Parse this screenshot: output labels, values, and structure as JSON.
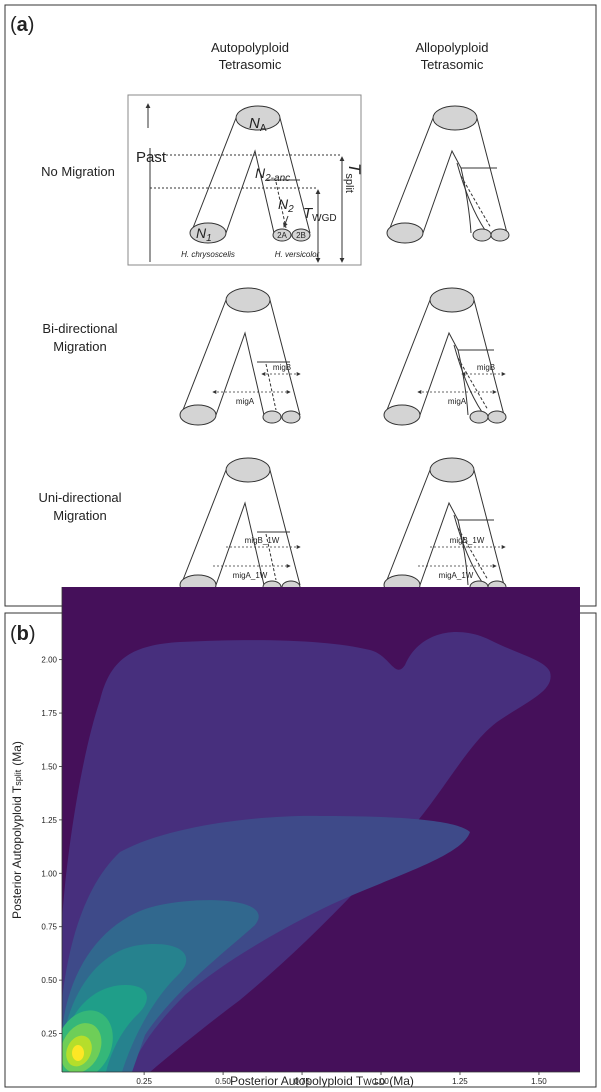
{
  "panel_a": {
    "label": [
      "(",
      "a",
      ")"
    ],
    "columns": [
      [
        "Autopolyploid",
        "Tetrasomic"
      ],
      [
        "Allopolyploid",
        "Tetrasomic"
      ]
    ],
    "rows": [
      [
        "No Migration"
      ],
      [
        "Bi-directional",
        "Migration"
      ],
      [
        "Uni-directional",
        "Migration"
      ]
    ],
    "diagram": {
      "past": "Past",
      "n_a": {
        "base": "N",
        "sub": "A"
      },
      "n_2anc": {
        "base": "N",
        "sub": "2-anc"
      },
      "n_2": {
        "base": "N",
        "sub": "2"
      },
      "n_1": {
        "base": "N",
        "sub": "1"
      },
      "t_wgd": {
        "base": "T",
        "sub": "WGD"
      },
      "t_split": {
        "base": "T",
        "sub": "split"
      },
      "sub_2a": "2A",
      "sub_2b": "2B",
      "species_1": "H. chrysoscelis",
      "species_2": "H. versicolor"
    },
    "migration": {
      "bi": [
        "migB",
        "migA"
      ],
      "uni": [
        "migB_1W",
        "migA_1W"
      ]
    }
  },
  "panel_b_label": [
    "(",
    "b",
    ")"
  ],
  "chart_data": {
    "type": "contour",
    "xlabel": {
      "text": "Posterior Autopolyploid T",
      "sub": "WGD",
      "unit": "(Ma)"
    },
    "ylabel": {
      "text": "Posterior Autopolyploid T",
      "sub": "split",
      "unit": "(Ma)"
    },
    "xlim": [
      -0.01,
      1.63
    ],
    "ylim": [
      0.07,
      2.34
    ],
    "xticks": [
      0.25,
      {
        "value": 0.5,
        "label": "0.50"
      },
      0.75,
      {
        "value": 1,
        "label": "1.00"
      },
      1.25,
      {
        "value": 1.5,
        "label": "1.50"
      }
    ],
    "yticks": [
      0.25,
      {
        "value": 0.5,
        "label": "0.50"
      },
      0.75,
      {
        "value": 1,
        "label": "1.00"
      },
      1.25,
      {
        "value": 1.5,
        "label": "1.50"
      },
      1.75,
      {
        "value": 2,
        "label": "2.00"
      }
    ],
    "background": "#45105a",
    "level_colors": [
      "#472f7d",
      "#3e4a89",
      "#31688e",
      "#26828e",
      "#1f9e89",
      "#35b779",
      "#6ece58",
      "#b5de2b",
      "#fde725"
    ]
  }
}
